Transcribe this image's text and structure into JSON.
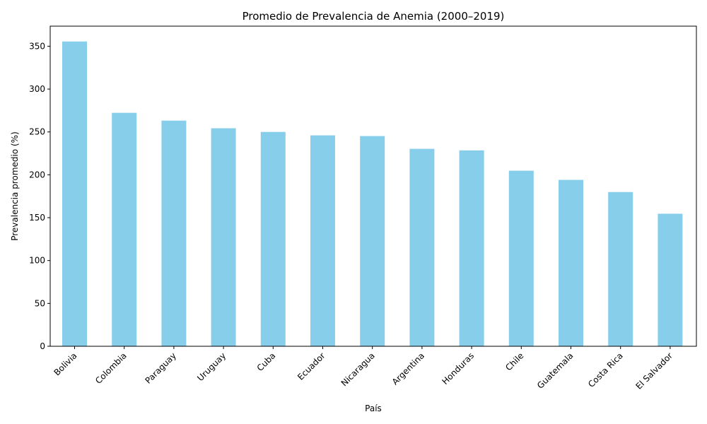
{
  "chart_data": {
    "type": "bar",
    "title": "Promedio de Prevalencia de Anemia (2000–2019)",
    "xlabel": "País",
    "ylabel": "Prevalencia promedio (%)",
    "categories": [
      "Bolivia",
      "Colombia",
      "Paraguay",
      "Uruguay",
      "Cuba",
      "Ecuador",
      "Nicaragua",
      "Argentina",
      "Honduras",
      "Chile",
      "Guatemala",
      "Costa Rica",
      "El Salvador"
    ],
    "values": [
      355.5,
      272.3,
      263.2,
      254.3,
      250.0,
      246.0,
      245.2,
      230.3,
      228.5,
      204.8,
      194.1,
      179.9,
      154.6
    ],
    "yticks": [
      "0",
      "50",
      "100",
      "150",
      "200",
      "250",
      "300",
      "350"
    ],
    "ylim": [
      0,
      373.4
    ],
    "grid": false,
    "legend": "none",
    "bar_color": "#87ceeb"
  }
}
